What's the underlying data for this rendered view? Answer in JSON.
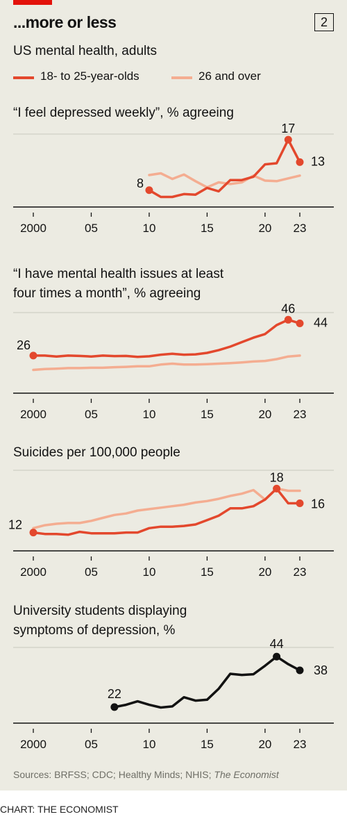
{
  "header": {
    "headline": "...more or less",
    "chart_number": "2",
    "subtitle": "US mental health, adults",
    "legend": [
      {
        "label": "18- to 25-year-olds",
        "color": "#e3482d"
      },
      {
        "label": "26 and over",
        "color": "#f4ad91"
      }
    ]
  },
  "colors": {
    "young": "#e3482d",
    "old": "#f4ad91",
    "students": "#121212",
    "accent_bar": "#e3120b",
    "background": "#ecebe2"
  },
  "footer": {
    "source_prefix": "Sources: BRFSS; CDC; Healthy Minds; NHIS; ",
    "source_italic": "The Economist",
    "credit": "CHART: THE ECONOMIST"
  },
  "chart_data": [
    {
      "type": "line",
      "title": "“I feel depressed weekly”, % agreeing",
      "x_ticks": [
        2000,
        2005,
        2010,
        2015,
        2020,
        2023
      ],
      "x_tick_labels": [
        "2000",
        "05",
        "10",
        "15",
        "20",
        "23"
      ],
      "xlim": [
        2000,
        2023
      ],
      "ylim": [
        5,
        18
      ],
      "series": [
        {
          "name": "18- to 25-year-olds",
          "color": "#e3482d",
          "x": [
            2010,
            2011,
            2012,
            2013,
            2014,
            2015,
            2016,
            2017,
            2018,
            2019,
            2020,
            2021,
            2022,
            2023
          ],
          "values": [
            8,
            6.8,
            6.8,
            7.3,
            7.2,
            8.4,
            7.8,
            9.8,
            9.8,
            10.4,
            12.6,
            12.8,
            17,
            13
          ]
        },
        {
          "name": "26 and over",
          "color": "#f4ad91",
          "x": [
            2010,
            2011,
            2012,
            2013,
            2014,
            2015,
            2016,
            2017,
            2018,
            2019,
            2020,
            2021,
            2022,
            2023
          ],
          "values": [
            10.7,
            11,
            10,
            10.8,
            9.6,
            8.5,
            9.4,
            9.1,
            9.4,
            10.6,
            9.7,
            9.6,
            10.1,
            10.6
          ]
        }
      ],
      "labels": [
        {
          "text": "8",
          "x": 2010,
          "y": 8
        },
        {
          "text": "17",
          "x": 2022,
          "y": 17
        },
        {
          "text": "13",
          "x": 2023,
          "y": 13
        }
      ]
    },
    {
      "type": "line",
      "title": "“I have mental health issues at least\nfour times a month”, % agreeing",
      "x_ticks": [
        2000,
        2005,
        2010,
        2015,
        2020,
        2023
      ],
      "x_tick_labels": [
        "2000",
        "05",
        "10",
        "15",
        "20",
        "23"
      ],
      "xlim": [
        2000,
        2023
      ],
      "ylim": [
        5,
        50
      ],
      "series": [
        {
          "name": "18- to 25-year-olds",
          "color": "#e3482d",
          "x": [
            2000,
            2001,
            2002,
            2003,
            2004,
            2005,
            2006,
            2007,
            2008,
            2009,
            2010,
            2011,
            2012,
            2013,
            2014,
            2015,
            2016,
            2017,
            2018,
            2019,
            2020,
            2021,
            2022,
            2023
          ],
          "values": [
            26,
            26,
            25.5,
            26,
            25.8,
            25.5,
            26,
            25.7,
            25.8,
            25.3,
            25.6,
            26.5,
            27,
            26.5,
            26.7,
            27.5,
            29,
            31,
            33.5,
            36,
            38,
            43,
            46,
            44
          ]
        },
        {
          "name": "26 and over",
          "color": "#f4ad91",
          "x": [
            2000,
            2001,
            2002,
            2003,
            2004,
            2005,
            2006,
            2007,
            2008,
            2009,
            2010,
            2011,
            2012,
            2013,
            2014,
            2015,
            2016,
            2017,
            2018,
            2019,
            2020,
            2021,
            2022,
            2023
          ],
          "values": [
            18,
            18.5,
            18.7,
            19,
            19,
            19.2,
            19.2,
            19.5,
            19.7,
            20,
            20,
            21,
            21.5,
            21,
            21,
            21.2,
            21.5,
            21.8,
            22.2,
            22.7,
            23,
            24,
            25.5,
            26
          ]
        }
      ],
      "labels": [
        {
          "text": "26",
          "x": 2000,
          "y": 26
        },
        {
          "text": "46",
          "x": 2022,
          "y": 46
        },
        {
          "text": "44",
          "x": 2023,
          "y": 44
        }
      ]
    },
    {
      "type": "line",
      "title": "Suicides per 100,000 people",
      "x_ticks": [
        2000,
        2005,
        2010,
        2015,
        2020,
        2023
      ],
      "x_tick_labels": [
        "2000",
        "05",
        "10",
        "15",
        "20",
        "23"
      ],
      "xlim": [
        2000,
        2023
      ],
      "ylim": [
        9.5,
        20.5
      ],
      "series": [
        {
          "name": "18- to 25-year-olds",
          "color": "#e3482d",
          "x": [
            2000,
            2001,
            2002,
            2003,
            2004,
            2005,
            2006,
            2007,
            2008,
            2009,
            2010,
            2011,
            2012,
            2013,
            2014,
            2015,
            2016,
            2017,
            2018,
            2019,
            2020,
            2021,
            2022,
            2023
          ],
          "values": [
            12,
            11.8,
            11.8,
            11.7,
            12.1,
            11.9,
            11.9,
            11.9,
            12,
            12,
            12.6,
            12.8,
            12.8,
            12.9,
            13.1,
            13.7,
            14.3,
            15.3,
            15.3,
            15.6,
            16.5,
            18,
            16,
            16
          ]
        },
        {
          "name": "26 and over",
          "color": "#f4ad91",
          "x": [
            2000,
            2001,
            2002,
            2003,
            2004,
            2005,
            2006,
            2007,
            2008,
            2009,
            2010,
            2011,
            2012,
            2013,
            2014,
            2015,
            2016,
            2017,
            2018,
            2019,
            2020,
            2021,
            2022,
            2023
          ],
          "values": [
            12.6,
            13,
            13.2,
            13.3,
            13.3,
            13.6,
            14,
            14.4,
            14.6,
            15,
            15.2,
            15.4,
            15.6,
            15.8,
            16.1,
            16.3,
            16.6,
            17,
            17.3,
            17.8,
            16.5,
            18,
            17.7,
            17.7
          ]
        }
      ],
      "labels": [
        {
          "text": "12",
          "x": 2000,
          "y": 12
        },
        {
          "text": "18",
          "x": 2021,
          "y": 18
        },
        {
          "text": "16",
          "x": 2023,
          "y": 16
        }
      ]
    },
    {
      "type": "line",
      "title": "University students displaying\nsymptoms of depression, %",
      "x_ticks": [
        2000,
        2005,
        2010,
        2015,
        2020,
        2023
      ],
      "x_tick_labels": [
        "2000",
        "05",
        "10",
        "15",
        "20",
        "23"
      ],
      "xlim": [
        2000,
        2023
      ],
      "ylim": [
        15,
        48
      ],
      "series": [
        {
          "name": "University students",
          "color": "#121212",
          "x": [
            2007,
            2008,
            2009,
            2010,
            2011,
            2012,
            2013,
            2014,
            2015,
            2016,
            2017,
            2018,
            2019,
            2020,
            2021,
            2022,
            2023
          ],
          "values": [
            22,
            23,
            24.5,
            23,
            21.8,
            22.3,
            26.3,
            24.8,
            25.2,
            30,
            36.5,
            36,
            36.3,
            40,
            44,
            40.7,
            38
          ]
        }
      ],
      "labels": [
        {
          "text": "22",
          "x": 2007,
          "y": 22
        },
        {
          "text": "44",
          "x": 2021,
          "y": 44
        },
        {
          "text": "38",
          "x": 2023,
          "y": 38
        }
      ]
    }
  ]
}
